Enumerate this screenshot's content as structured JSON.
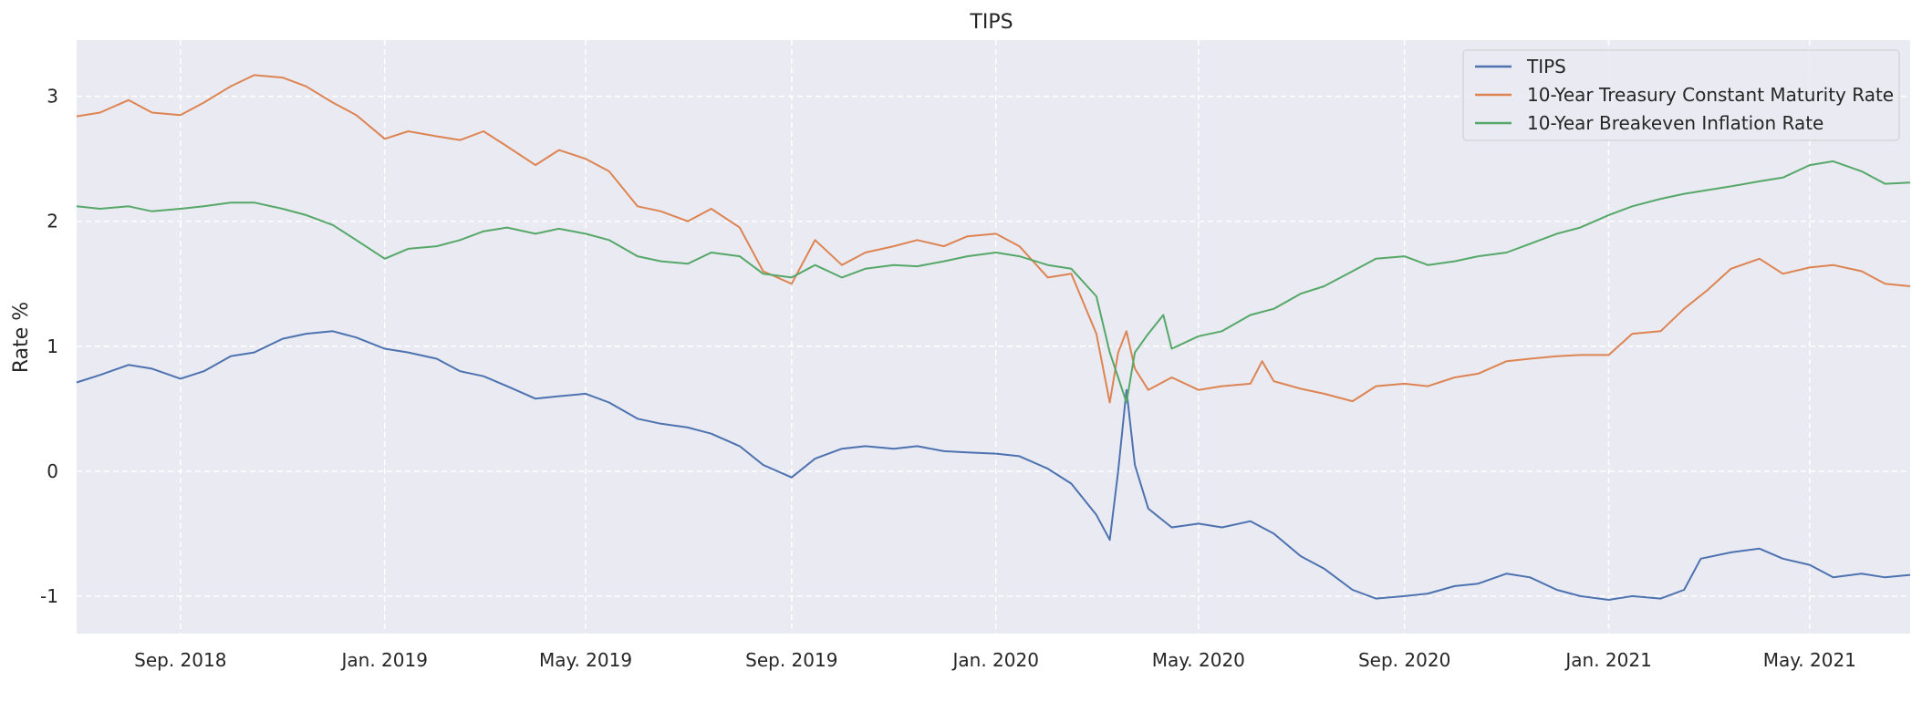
{
  "chart_data": {
    "type": "line",
    "title": "TIPS",
    "xlabel": "",
    "ylabel": "Rate %",
    "x_range": [
      "2018-07-01",
      "2021-06-30"
    ],
    "ylim": [
      -1.3,
      3.45
    ],
    "grid": true,
    "legend": "top-right",
    "y_ticks": [
      {
        "value": -1,
        "label": "-1"
      },
      {
        "value": 0,
        "label": "0"
      },
      {
        "value": 1,
        "label": "1"
      },
      {
        "value": 2,
        "label": "2"
      },
      {
        "value": 3,
        "label": "3"
      }
    ],
    "x_ticks": [
      {
        "date": "2018-09-01",
        "label": "Sep. 2018"
      },
      {
        "date": "2019-01-01",
        "label": "Jan. 2019"
      },
      {
        "date": "2019-05-01",
        "label": "May. 2019"
      },
      {
        "date": "2019-09-01",
        "label": "Sep. 2019"
      },
      {
        "date": "2020-01-01",
        "label": "Jan. 2020"
      },
      {
        "date": "2020-05-01",
        "label": "May. 2020"
      },
      {
        "date": "2020-09-01",
        "label": "Sep. 2020"
      },
      {
        "date": "2021-01-01",
        "label": "Jan. 2021"
      },
      {
        "date": "2021-05-01",
        "label": "May. 2021"
      }
    ],
    "series": [
      {
        "name": "TIPS",
        "color": "#4c72b0",
        "points": [
          [
            "2018-07-01",
            0.71
          ],
          [
            "2018-07-15",
            0.77
          ],
          [
            "2018-08-01",
            0.85
          ],
          [
            "2018-08-15",
            0.82
          ],
          [
            "2018-09-01",
            0.74
          ],
          [
            "2018-09-15",
            0.8
          ],
          [
            "2018-10-01",
            0.92
          ],
          [
            "2018-10-15",
            0.95
          ],
          [
            "2018-11-01",
            1.06
          ],
          [
            "2018-11-15",
            1.1
          ],
          [
            "2018-12-01",
            1.12
          ],
          [
            "2018-12-15",
            1.07
          ],
          [
            "2019-01-01",
            0.98
          ],
          [
            "2019-01-15",
            0.95
          ],
          [
            "2019-02-01",
            0.9
          ],
          [
            "2019-02-15",
            0.8
          ],
          [
            "2019-03-01",
            0.76
          ],
          [
            "2019-03-15",
            0.68
          ],
          [
            "2019-04-01",
            0.58
          ],
          [
            "2019-04-15",
            0.6
          ],
          [
            "2019-05-01",
            0.62
          ],
          [
            "2019-05-15",
            0.55
          ],
          [
            "2019-06-01",
            0.42
          ],
          [
            "2019-06-15",
            0.38
          ],
          [
            "2019-07-01",
            0.35
          ],
          [
            "2019-07-15",
            0.3
          ],
          [
            "2019-08-01",
            0.2
          ],
          [
            "2019-08-15",
            0.05
          ],
          [
            "2019-09-01",
            -0.05
          ],
          [
            "2019-09-15",
            0.1
          ],
          [
            "2019-10-01",
            0.18
          ],
          [
            "2019-10-15",
            0.2
          ],
          [
            "2019-11-01",
            0.18
          ],
          [
            "2019-11-15",
            0.2
          ],
          [
            "2019-12-01",
            0.16
          ],
          [
            "2019-12-15",
            0.15
          ],
          [
            "2020-01-01",
            0.14
          ],
          [
            "2020-01-15",
            0.12
          ],
          [
            "2020-02-01",
            0.02
          ],
          [
            "2020-02-15",
            -0.1
          ],
          [
            "2020-03-01",
            -0.35
          ],
          [
            "2020-03-09",
            -0.55
          ],
          [
            "2020-03-14",
            0.0
          ],
          [
            "2020-03-19",
            0.65
          ],
          [
            "2020-03-24",
            0.05
          ],
          [
            "2020-04-01",
            -0.3
          ],
          [
            "2020-04-15",
            -0.45
          ],
          [
            "2020-05-01",
            -0.42
          ],
          [
            "2020-05-15",
            -0.45
          ],
          [
            "2020-06-01",
            -0.4
          ],
          [
            "2020-06-15",
            -0.5
          ],
          [
            "2020-07-01",
            -0.68
          ],
          [
            "2020-07-15",
            -0.78
          ],
          [
            "2020-08-01",
            -0.95
          ],
          [
            "2020-08-15",
            -1.02
          ],
          [
            "2020-09-01",
            -1.0
          ],
          [
            "2020-09-15",
            -0.98
          ],
          [
            "2020-10-01",
            -0.92
          ],
          [
            "2020-10-15",
            -0.9
          ],
          [
            "2020-11-01",
            -0.82
          ],
          [
            "2020-11-15",
            -0.85
          ],
          [
            "2020-12-01",
            -0.95
          ],
          [
            "2020-12-15",
            -1.0
          ],
          [
            "2021-01-01",
            -1.03
          ],
          [
            "2021-01-15",
            -1.0
          ],
          [
            "2021-02-01",
            -1.02
          ],
          [
            "2021-02-15",
            -0.95
          ],
          [
            "2021-02-25",
            -0.7
          ],
          [
            "2021-03-15",
            -0.65
          ],
          [
            "2021-04-01",
            -0.62
          ],
          [
            "2021-04-15",
            -0.7
          ],
          [
            "2021-05-01",
            -0.75
          ],
          [
            "2021-05-15",
            -0.85
          ],
          [
            "2021-06-01",
            -0.82
          ],
          [
            "2021-06-15",
            -0.85
          ],
          [
            "2021-06-30",
            -0.83
          ]
        ]
      },
      {
        "name": "10-Year Treasury Constant Maturity Rate",
        "color": "#dd8452",
        "points": [
          [
            "2018-07-01",
            2.84
          ],
          [
            "2018-07-15",
            2.87
          ],
          [
            "2018-08-01",
            2.97
          ],
          [
            "2018-08-15",
            2.87
          ],
          [
            "2018-09-01",
            2.85
          ],
          [
            "2018-09-15",
            2.95
          ],
          [
            "2018-10-01",
            3.08
          ],
          [
            "2018-10-15",
            3.17
          ],
          [
            "2018-11-01",
            3.15
          ],
          [
            "2018-11-15",
            3.08
          ],
          [
            "2018-12-01",
            2.95
          ],
          [
            "2018-12-15",
            2.85
          ],
          [
            "2019-01-01",
            2.66
          ],
          [
            "2019-01-15",
            2.72
          ],
          [
            "2019-02-01",
            2.68
          ],
          [
            "2019-02-15",
            2.65
          ],
          [
            "2019-03-01",
            2.72
          ],
          [
            "2019-03-15",
            2.6
          ],
          [
            "2019-04-01",
            2.45
          ],
          [
            "2019-04-15",
            2.57
          ],
          [
            "2019-05-01",
            2.5
          ],
          [
            "2019-05-15",
            2.4
          ],
          [
            "2019-06-01",
            2.12
          ],
          [
            "2019-06-15",
            2.08
          ],
          [
            "2019-07-01",
            2.0
          ],
          [
            "2019-07-15",
            2.1
          ],
          [
            "2019-08-01",
            1.95
          ],
          [
            "2019-08-15",
            1.6
          ],
          [
            "2019-09-01",
            1.5
          ],
          [
            "2019-09-15",
            1.85
          ],
          [
            "2019-10-01",
            1.65
          ],
          [
            "2019-10-15",
            1.75
          ],
          [
            "2019-11-01",
            1.8
          ],
          [
            "2019-11-15",
            1.85
          ],
          [
            "2019-12-01",
            1.8
          ],
          [
            "2019-12-15",
            1.88
          ],
          [
            "2020-01-01",
            1.9
          ],
          [
            "2020-01-15",
            1.8
          ],
          [
            "2020-02-01",
            1.55
          ],
          [
            "2020-02-15",
            1.58
          ],
          [
            "2020-03-01",
            1.1
          ],
          [
            "2020-03-09",
            0.55
          ],
          [
            "2020-03-14",
            0.95
          ],
          [
            "2020-03-19",
            1.12
          ],
          [
            "2020-03-24",
            0.82
          ],
          [
            "2020-04-01",
            0.65
          ],
          [
            "2020-04-15",
            0.75
          ],
          [
            "2020-05-01",
            0.65
          ],
          [
            "2020-05-15",
            0.68
          ],
          [
            "2020-06-01",
            0.7
          ],
          [
            "2020-06-08",
            0.88
          ],
          [
            "2020-06-15",
            0.72
          ],
          [
            "2020-07-01",
            0.66
          ],
          [
            "2020-07-15",
            0.62
          ],
          [
            "2020-08-01",
            0.56
          ],
          [
            "2020-08-15",
            0.68
          ],
          [
            "2020-09-01",
            0.7
          ],
          [
            "2020-09-15",
            0.68
          ],
          [
            "2020-10-01",
            0.75
          ],
          [
            "2020-10-15",
            0.78
          ],
          [
            "2020-11-01",
            0.88
          ],
          [
            "2020-11-15",
            0.9
          ],
          [
            "2020-12-01",
            0.92
          ],
          [
            "2020-12-15",
            0.93
          ],
          [
            "2021-01-01",
            0.93
          ],
          [
            "2021-01-15",
            1.1
          ],
          [
            "2021-02-01",
            1.12
          ],
          [
            "2021-02-15",
            1.3
          ],
          [
            "2021-03-01",
            1.45
          ],
          [
            "2021-03-15",
            1.62
          ],
          [
            "2021-04-01",
            1.7
          ],
          [
            "2021-04-15",
            1.58
          ],
          [
            "2021-05-01",
            1.63
          ],
          [
            "2021-05-15",
            1.65
          ],
          [
            "2021-06-01",
            1.6
          ],
          [
            "2021-06-15",
            1.5
          ],
          [
            "2021-06-30",
            1.48
          ]
        ]
      },
      {
        "name": "10-Year Breakeven Inflation Rate",
        "color": "#55a868",
        "points": [
          [
            "2018-07-01",
            2.12
          ],
          [
            "2018-07-15",
            2.1
          ],
          [
            "2018-08-01",
            2.12
          ],
          [
            "2018-08-15",
            2.08
          ],
          [
            "2018-09-01",
            2.1
          ],
          [
            "2018-09-15",
            2.12
          ],
          [
            "2018-10-01",
            2.15
          ],
          [
            "2018-10-15",
            2.15
          ],
          [
            "2018-11-01",
            2.1
          ],
          [
            "2018-11-15",
            2.05
          ],
          [
            "2018-12-01",
            1.97
          ],
          [
            "2018-12-15",
            1.85
          ],
          [
            "2019-01-01",
            1.7
          ],
          [
            "2019-01-15",
            1.78
          ],
          [
            "2019-02-01",
            1.8
          ],
          [
            "2019-02-15",
            1.85
          ],
          [
            "2019-03-01",
            1.92
          ],
          [
            "2019-03-15",
            1.95
          ],
          [
            "2019-04-01",
            1.9
          ],
          [
            "2019-04-15",
            1.94
          ],
          [
            "2019-05-01",
            1.9
          ],
          [
            "2019-05-15",
            1.85
          ],
          [
            "2019-06-01",
            1.72
          ],
          [
            "2019-06-15",
            1.68
          ],
          [
            "2019-07-01",
            1.66
          ],
          [
            "2019-07-15",
            1.75
          ],
          [
            "2019-08-01",
            1.72
          ],
          [
            "2019-08-15",
            1.58
          ],
          [
            "2019-09-01",
            1.55
          ],
          [
            "2019-09-15",
            1.65
          ],
          [
            "2019-10-01",
            1.55
          ],
          [
            "2019-10-15",
            1.62
          ],
          [
            "2019-11-01",
            1.65
          ],
          [
            "2019-11-15",
            1.64
          ],
          [
            "2019-12-01",
            1.68
          ],
          [
            "2019-12-15",
            1.72
          ],
          [
            "2020-01-01",
            1.75
          ],
          [
            "2020-01-15",
            1.72
          ],
          [
            "2020-02-01",
            1.65
          ],
          [
            "2020-02-15",
            1.62
          ],
          [
            "2020-03-01",
            1.4
          ],
          [
            "2020-03-09",
            0.95
          ],
          [
            "2020-03-14",
            0.75
          ],
          [
            "2020-03-19",
            0.55
          ],
          [
            "2020-03-24",
            0.95
          ],
          [
            "2020-04-01",
            1.1
          ],
          [
            "2020-04-10",
            1.25
          ],
          [
            "2020-04-15",
            0.98
          ],
          [
            "2020-05-01",
            1.08
          ],
          [
            "2020-05-15",
            1.12
          ],
          [
            "2020-06-01",
            1.25
          ],
          [
            "2020-06-15",
            1.3
          ],
          [
            "2020-07-01",
            1.42
          ],
          [
            "2020-07-15",
            1.48
          ],
          [
            "2020-08-01",
            1.6
          ],
          [
            "2020-08-15",
            1.7
          ],
          [
            "2020-09-01",
            1.72
          ],
          [
            "2020-09-15",
            1.65
          ],
          [
            "2020-10-01",
            1.68
          ],
          [
            "2020-10-15",
            1.72
          ],
          [
            "2020-11-01",
            1.75
          ],
          [
            "2020-11-15",
            1.82
          ],
          [
            "2020-12-01",
            1.9
          ],
          [
            "2020-12-15",
            1.95
          ],
          [
            "2021-01-01",
            2.05
          ],
          [
            "2021-01-15",
            2.12
          ],
          [
            "2021-02-01",
            2.18
          ],
          [
            "2021-02-15",
            2.22
          ],
          [
            "2021-03-01",
            2.25
          ],
          [
            "2021-03-15",
            2.28
          ],
          [
            "2021-04-01",
            2.32
          ],
          [
            "2021-04-15",
            2.35
          ],
          [
            "2021-05-01",
            2.45
          ],
          [
            "2021-05-15",
            2.48
          ],
          [
            "2021-06-01",
            2.4
          ],
          [
            "2021-06-15",
            2.3
          ],
          [
            "2021-06-30",
            2.31
          ]
        ]
      }
    ]
  }
}
